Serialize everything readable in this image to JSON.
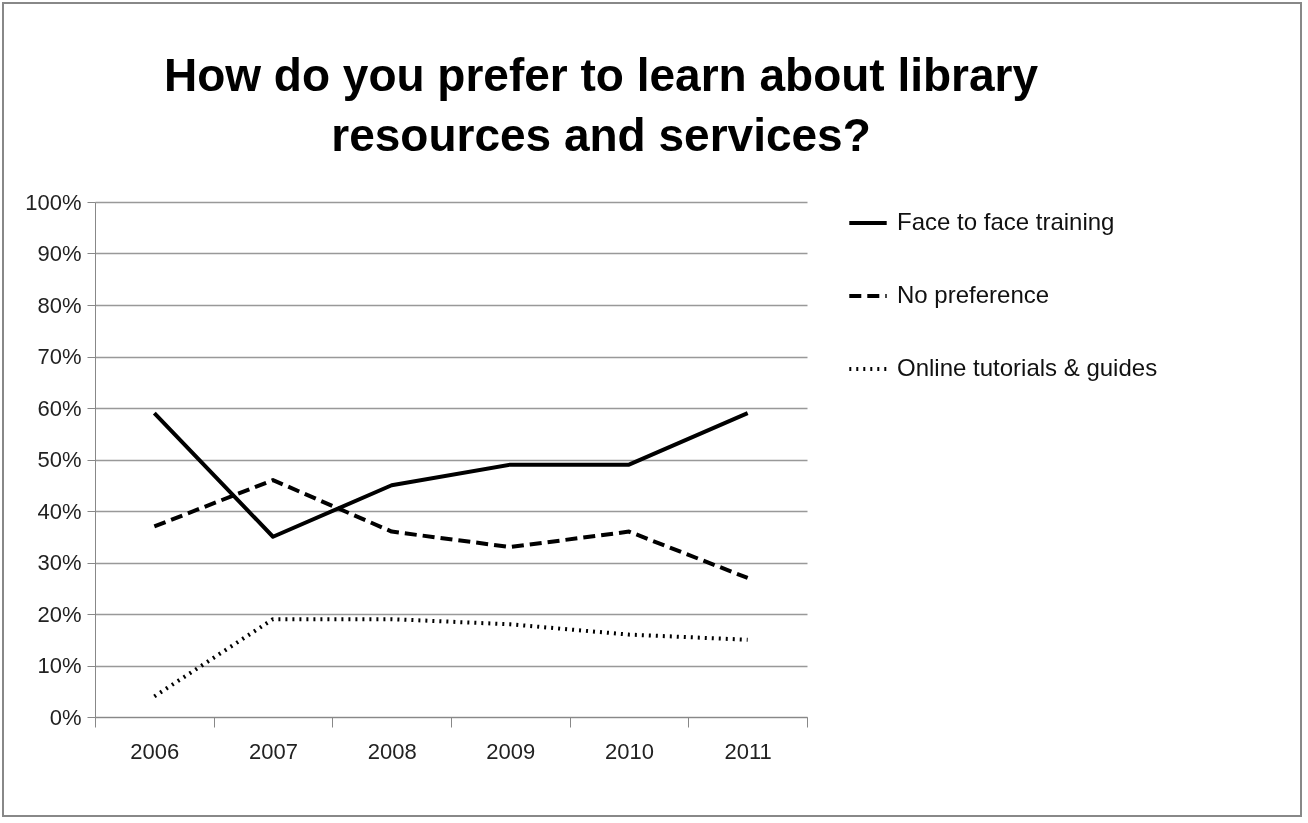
{
  "chart_data": {
    "type": "line",
    "title": "How do you prefer to learn about library resources and services?",
    "categories": [
      "2006",
      "2007",
      "2008",
      "2009",
      "2010",
      "2011"
    ],
    "series": [
      {
        "name": "Face to face training",
        "color": "#000000",
        "line_style": "solid",
        "values": [
          0.59,
          0.35,
          0.45,
          0.49,
          0.49,
          0.59
        ]
      },
      {
        "name": "No preference",
        "color": "#000000",
        "line_style": "dashed",
        "values": [
          0.37,
          0.46,
          0.36,
          0.33,
          0.36,
          0.27
        ]
      },
      {
        "name": "Online tutorials & guides",
        "color": "#000000",
        "line_style": "dotted",
        "values": [
          0.04,
          0.19,
          0.19,
          0.18,
          0.16,
          0.15
        ]
      }
    ],
    "ylim": [
      0,
      1
    ],
    "yticks": [
      {
        "value": 0,
        "label": "0%"
      },
      {
        "value": 0.1,
        "label": "10%"
      },
      {
        "value": 0.2,
        "label": "20%"
      },
      {
        "value": 0.3,
        "label": "30%"
      },
      {
        "value": 0.4,
        "label": "40%"
      },
      {
        "value": 0.5,
        "label": "50%"
      },
      {
        "value": 0.6,
        "label": "60%"
      },
      {
        "value": 0.7,
        "label": "70%"
      },
      {
        "value": 0.8,
        "label": "80%"
      },
      {
        "value": 0.9,
        "label": "90%"
      },
      {
        "value": 1,
        "label": "100%"
      }
    ],
    "grid": "y",
    "legend": "right",
    "marker": "none"
  }
}
